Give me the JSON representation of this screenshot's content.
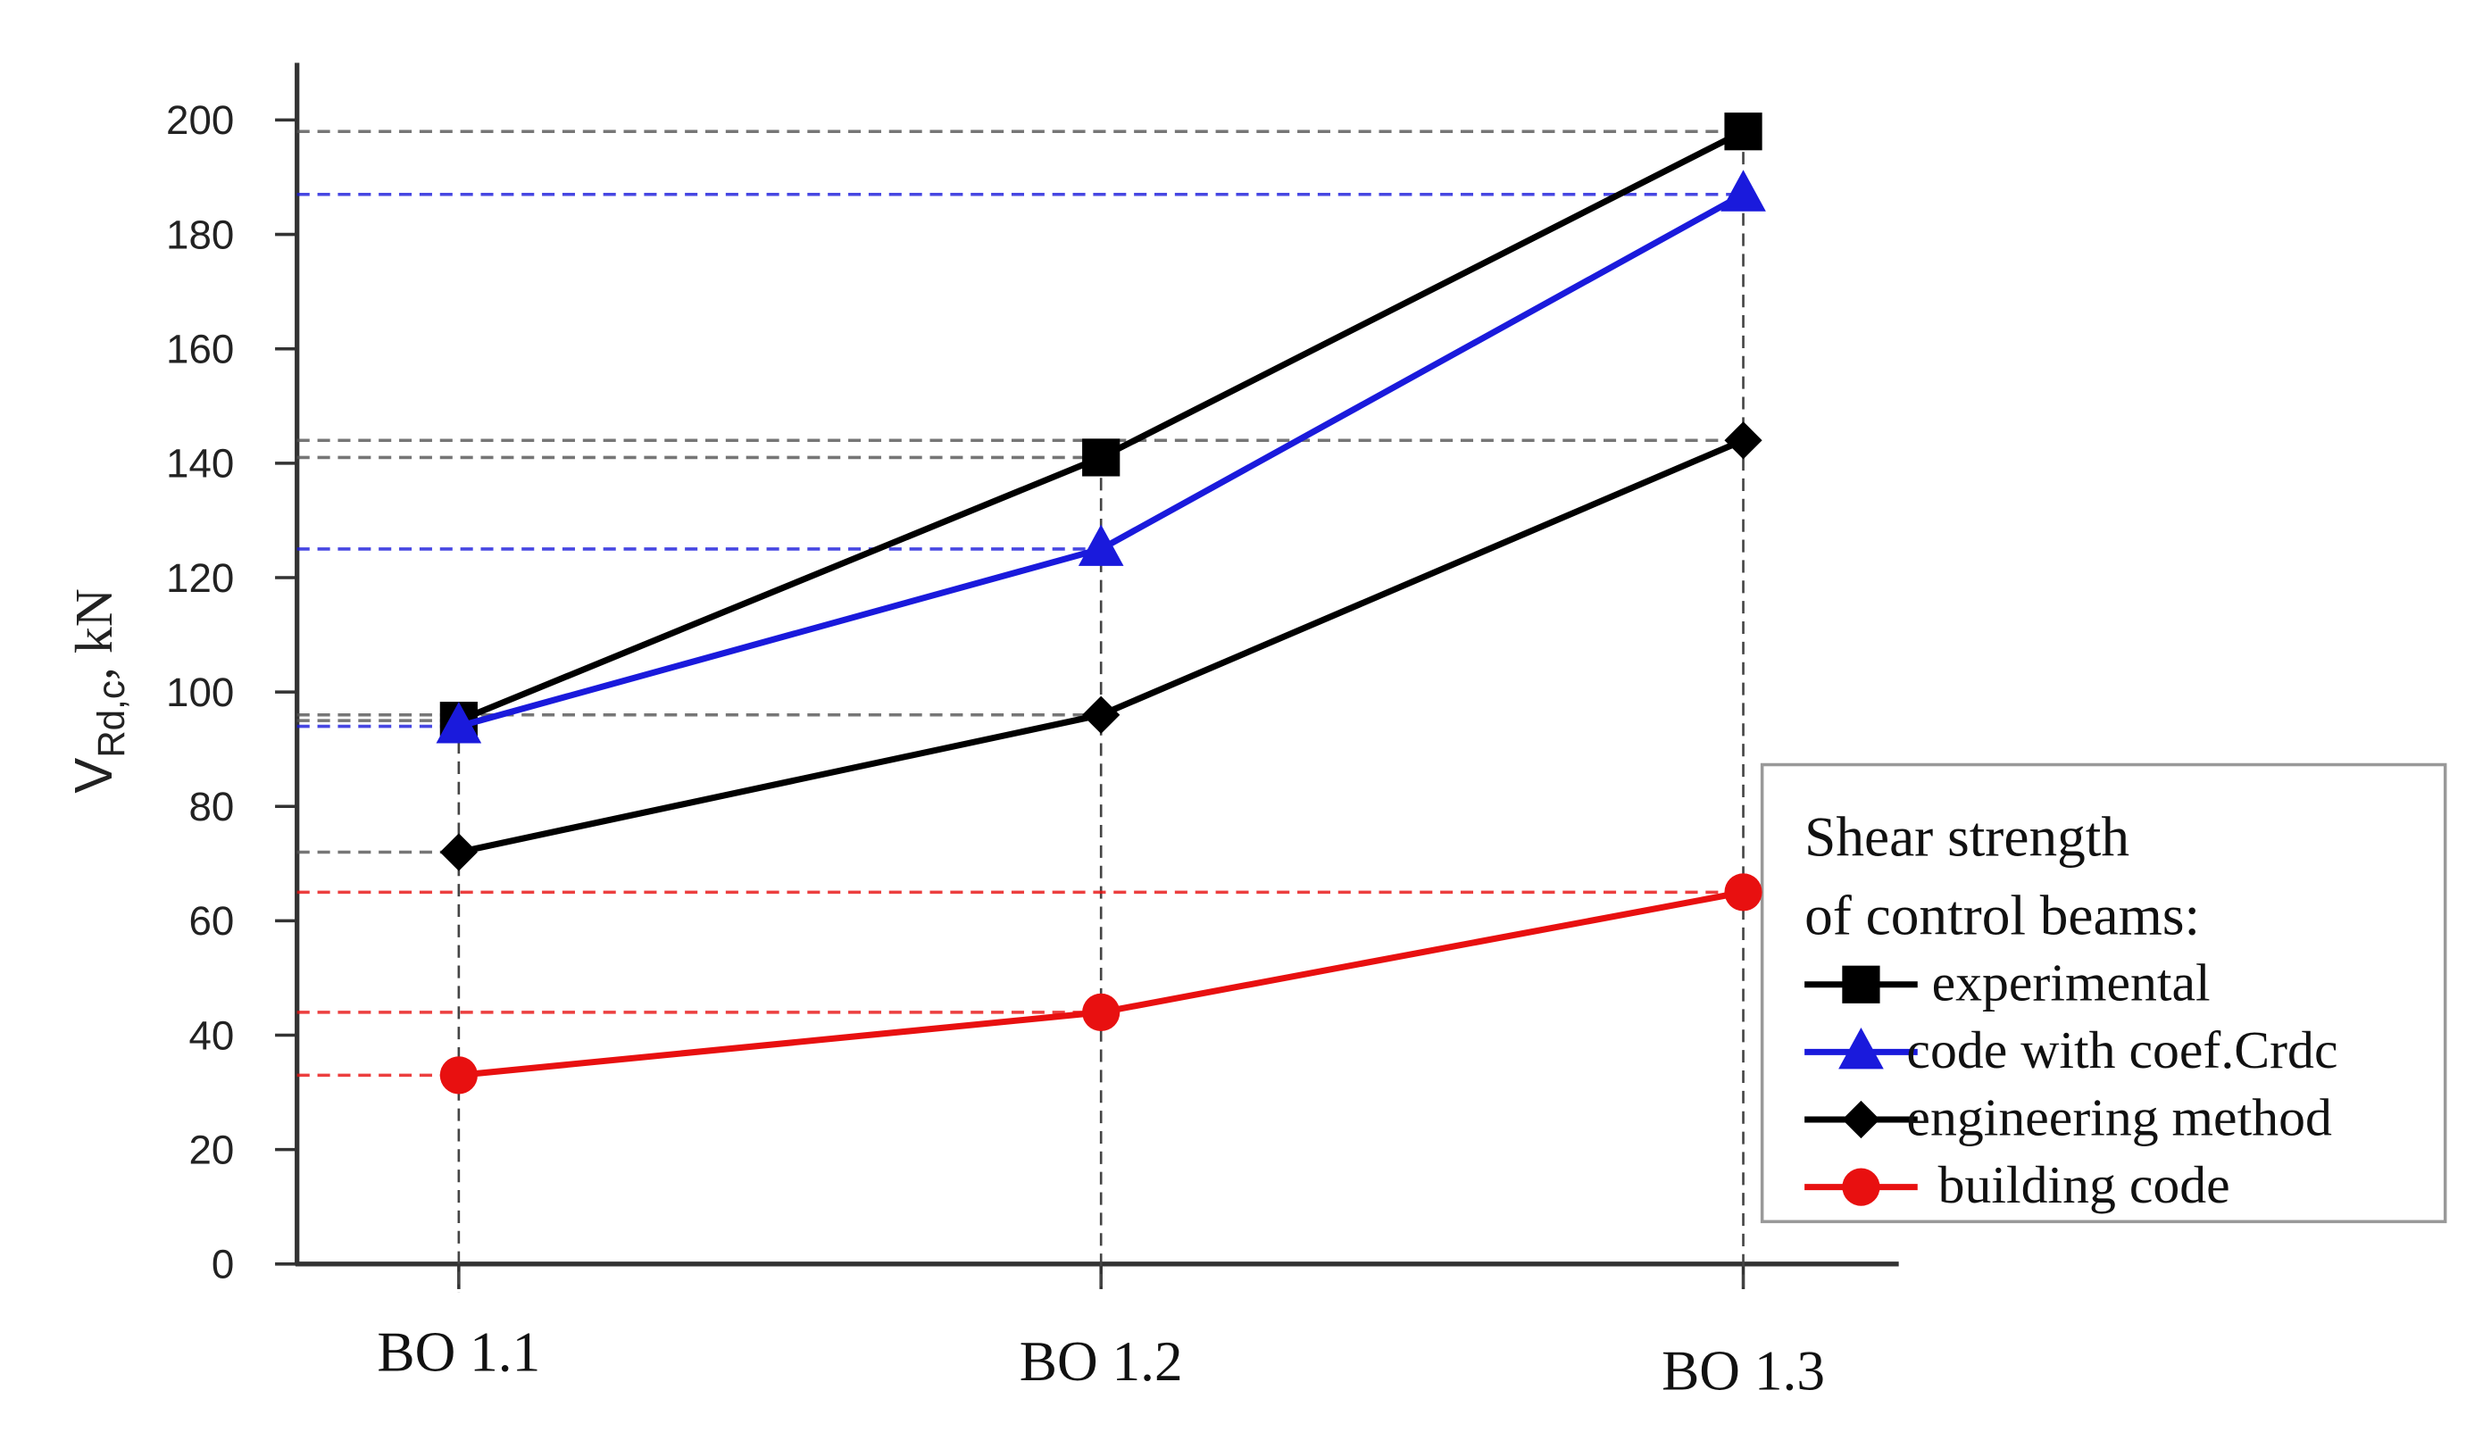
{
  "chart_data": {
    "type": "line",
    "y_label": {
      "symbol": "V",
      "subscript": "Rd,c",
      "unit": ", kN"
    },
    "categories": [
      "BO 1.1",
      "BO 1.2",
      "BO 1.3"
    ],
    "series": [
      {
        "name": "experimental",
        "color": "#000000",
        "marker": "square",
        "values": [
          95,
          141,
          198
        ]
      },
      {
        "name": "code with coef.Crdc",
        "color": "#1a1adc",
        "marker": "triangle",
        "values": [
          94,
          125,
          187
        ]
      },
      {
        "name": "engineering method",
        "color": "#000000",
        "marker": "diamond",
        "values": [
          72,
          96,
          144
        ]
      },
      {
        "name": "building code",
        "color": "#e81010",
        "marker": "circle",
        "values": [
          33,
          44,
          65
        ]
      }
    ],
    "legend_title": [
      "Shear strength",
      "of control beams:"
    ],
    "legend_position": "lower right",
    "ylim": [
      0,
      210
    ],
    "yticks": [
      0,
      20,
      40,
      60,
      80,
      100,
      120,
      140,
      160,
      180,
      200
    ]
  }
}
